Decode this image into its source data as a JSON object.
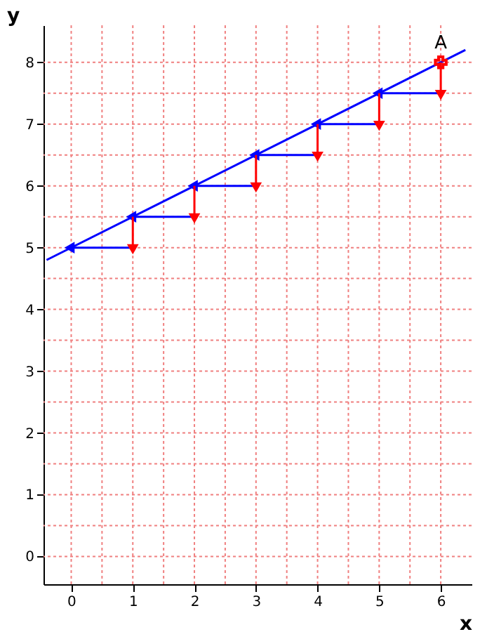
{
  "chart_data": {
    "type": "line",
    "xlabel": "x",
    "ylabel": "y",
    "xlim": [
      -0.45,
      6.5
    ],
    "ylim": [
      -0.45,
      8.6
    ],
    "xticks": [
      0,
      {
        "value": 0.5,
        "label": null
      },
      1,
      {
        "value": 1.5,
        "label": null
      },
      2,
      {
        "value": 2.5,
        "label": null
      },
      3,
      {
        "value": 3.5,
        "label": null
      },
      4,
      {
        "value": 4.5,
        "label": null
      },
      5,
      {
        "value": 5.5,
        "label": null
      },
      6
    ],
    "yticks": [
      0,
      {
        "value": 0.5,
        "label": null
      },
      1,
      {
        "value": 1.5,
        "label": null
      },
      2,
      {
        "value": 2.5,
        "label": null
      },
      3,
      {
        "value": 3.5,
        "label": null
      },
      4,
      {
        "value": 4.5,
        "label": null
      },
      5,
      {
        "value": 5.5,
        "label": null
      },
      6,
      {
        "value": 6.5,
        "label": null
      },
      7,
      {
        "value": 7.5,
        "label": null
      },
      8
    ],
    "grid": true,
    "series": [
      {
        "color": "#0000ff",
        "marker": "none",
        "x": [
          -0.4,
          6.4
        ],
        "values": [
          4.8,
          8.2
        ]
      },
      {
        "color": "#0000ff",
        "marker": "triangle",
        "x": [
          1,
          0,
          null,
          2,
          1,
          null,
          3,
          2,
          null,
          4,
          3,
          null,
          5,
          4,
          null,
          6,
          5
        ],
        "values": [
          5,
          5,
          null,
          5.5,
          5.5,
          null,
          6,
          6,
          null,
          6.5,
          6.5,
          null,
          7,
          7,
          null,
          7.5,
          7.5
        ]
      },
      {
        "color": "#ff0000",
        "marker": "triangle",
        "x": [
          1,
          1,
          null,
          2,
          2,
          null,
          3,
          3,
          null,
          4,
          4,
          null,
          5,
          5,
          null,
          6,
          6
        ],
        "values": [
          5.5,
          5,
          null,
          6,
          5.5,
          null,
          6.5,
          6,
          null,
          7,
          6.5,
          null,
          7.5,
          7,
          null,
          8,
          7.5
        ]
      },
      {
        "type": "scatter",
        "color": "#ff0000",
        "marker": "cross",
        "x": [
          6
        ],
        "values": [
          8
        ]
      }
    ],
    "annotations": [
      {
        "text": "A",
        "x": 6,
        "y": 8
      }
    ]
  }
}
